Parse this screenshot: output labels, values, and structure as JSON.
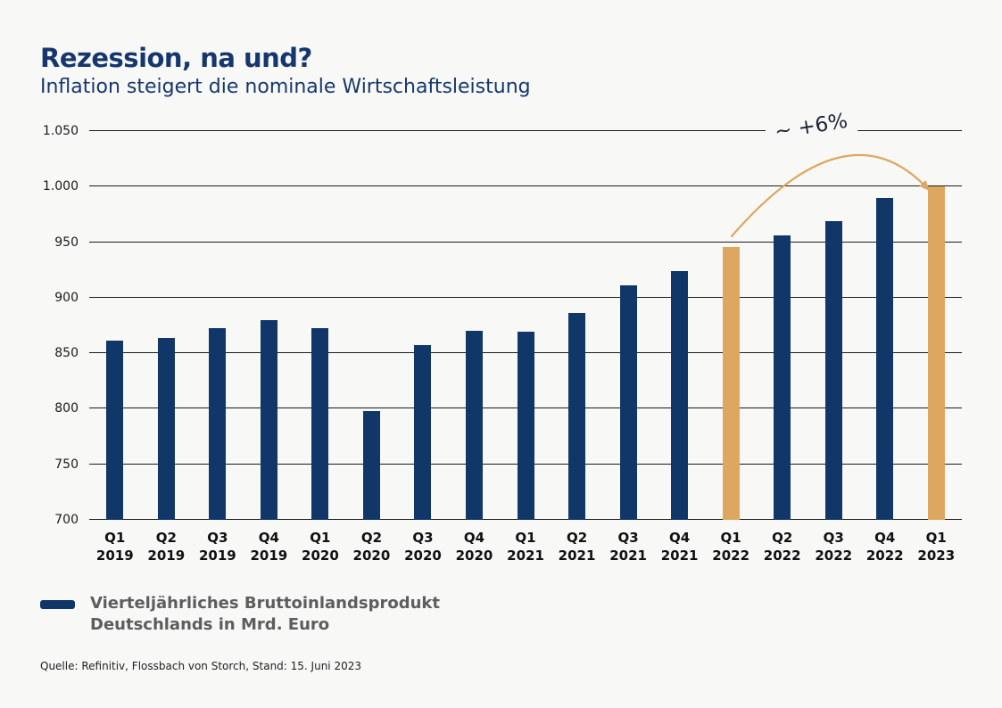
{
  "header": {
    "title": "Rezession, na und?",
    "subtitle": "Inflation steigert die nominale Wirtschaftsleistung"
  },
  "chart_data": {
    "type": "bar",
    "title": "Rezession, na und?",
    "subtitle": "Inflation steigert die nominale Wirtschaftsleistung",
    "categories": [
      {
        "quarter": "Q1",
        "year": "2019"
      },
      {
        "quarter": "Q2",
        "year": "2019"
      },
      {
        "quarter": "Q3",
        "year": "2019"
      },
      {
        "quarter": "Q4",
        "year": "2019"
      },
      {
        "quarter": "Q1",
        "year": "2020"
      },
      {
        "quarter": "Q2",
        "year": "2020"
      },
      {
        "quarter": "Q3",
        "year": "2020"
      },
      {
        "quarter": "Q4",
        "year": "2020"
      },
      {
        "quarter": "Q1",
        "year": "2021"
      },
      {
        "quarter": "Q2",
        "year": "2021"
      },
      {
        "quarter": "Q3",
        "year": "2021"
      },
      {
        "quarter": "Q4",
        "year": "2021"
      },
      {
        "quarter": "Q1",
        "year": "2022"
      },
      {
        "quarter": "Q2",
        "year": "2022"
      },
      {
        "quarter": "Q3",
        "year": "2022"
      },
      {
        "quarter": "Q4",
        "year": "2022"
      },
      {
        "quarter": "Q1",
        "year": "2023"
      }
    ],
    "values": [
      861,
      864,
      873,
      880,
      873,
      798,
      857,
      870,
      869,
      886,
      911,
      924,
      946,
      956,
      969,
      990,
      1000
    ],
    "series_name": "Vierteljährliches Bruttoinlandsprodukt Deutschlands in Mrd. Euro",
    "unit": "Mrd. Euro",
    "xlabel": "",
    "ylabel": "",
    "ylim": [
      700,
      1050
    ],
    "ytick_step": 50,
    "yticks": [
      {
        "value": 700,
        "label": "700"
      },
      {
        "value": 750,
        "label": "750"
      },
      {
        "value": 800,
        "label": "800"
      },
      {
        "value": 850,
        "label": "850"
      },
      {
        "value": 900,
        "label": "900"
      },
      {
        "value": 950,
        "label": "950"
      },
      {
        "value": 1000,
        "label": "1.000"
      },
      {
        "value": 1050,
        "label": "1.050"
      }
    ],
    "grid": true,
    "legend_position": "bottom-left",
    "annotation": "~ +6%",
    "highlight_indices": [
      12,
      16
    ],
    "colors": {
      "bar": "#113768",
      "highlight": "#dda75f",
      "arrow": "#dda75f",
      "grid": "#1c1c1c",
      "title": "#15376e"
    }
  },
  "legend": {
    "line1": "Vierteljährliches Bruttoinlandsprodukt",
    "line2": "Deutschlands in Mrd. Euro"
  },
  "footer": {
    "source": "Quelle: Refinitiv, Flossbach von Storch, Stand: 15. Juni 2023"
  }
}
